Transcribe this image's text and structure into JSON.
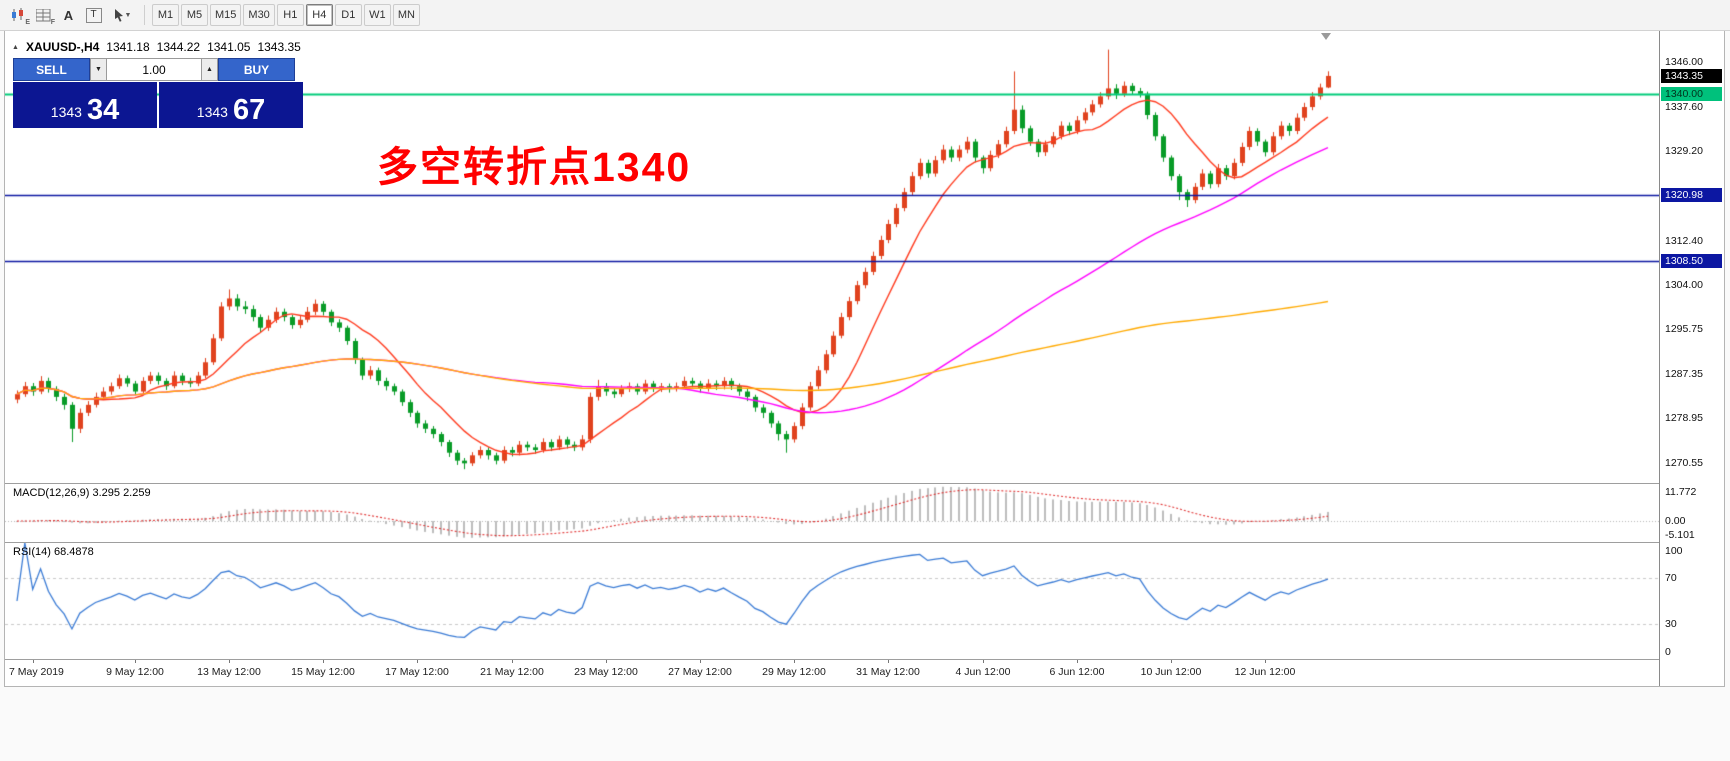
{
  "toolbar": {
    "tool_labels": {
      "a": "A",
      "t": "T",
      "e_sub": "E",
      "f_sub": "F"
    },
    "timeframes": [
      "M1",
      "M5",
      "M15",
      "M30",
      "H1",
      "H4",
      "D1",
      "W1",
      "MN"
    ],
    "active_timeframe": "H4"
  },
  "chart_header": {
    "symbol_period": "XAUUSD-,H4",
    "open": "1341.18",
    "high": "1344.22",
    "low": "1341.05",
    "close": "1343.35"
  },
  "trade_panel": {
    "sell_label": "SELL",
    "buy_label": "BUY",
    "volume": "1.00",
    "bid": {
      "main": "1343",
      "big": "34"
    },
    "ask": {
      "main": "1343",
      "big": "67"
    }
  },
  "annotation": {
    "text": "多空转折点1340",
    "color": "#ff0000"
  },
  "chart_data": {
    "type": "candlestick-ohlc",
    "symbol": "XAUUSD-",
    "timeframe": "H4",
    "price_range": [
      1266.8,
      1351.8
    ],
    "up_color": "#e0421e",
    "down_color": "#089b27",
    "current_price": 1343.35,
    "moving_averages": [
      {
        "name": "ma-fast",
        "period": 10,
        "color": "#ff3b1f"
      },
      {
        "name": "ma-medium",
        "period": 60,
        "color": "#ff00ff"
      },
      {
        "name": "ma-slow",
        "period": 200,
        "color": "#ffaa00"
      }
    ],
    "hlines": [
      {
        "price": 1340.0,
        "label": "1340.00",
        "color": "#00cc7a",
        "width": 2
      },
      {
        "price": 1320.98,
        "label": "1320.98",
        "color": "#0c17a2",
        "width": 1.6
      },
      {
        "price": 1308.5,
        "label": "1308.50",
        "color": "#0c17a2",
        "width": 1.6
      }
    ],
    "axis_labels": [
      {
        "text": "1346.00",
        "price": 1346.0,
        "style": "plain"
      },
      {
        "text": "1343.35",
        "price": 1343.35,
        "style": "current"
      },
      {
        "text": "1340.00",
        "price": 1340.0,
        "style": "green"
      },
      {
        "text": "1337.60",
        "price": 1337.6,
        "style": "plain"
      },
      {
        "text": "1329.20",
        "price": 1329.2,
        "style": "plain"
      },
      {
        "text": "1320.98",
        "price": 1320.98,
        "style": "blue"
      },
      {
        "text": "1312.40",
        "price": 1312.4,
        "style": "plain"
      },
      {
        "text": "1308.50",
        "price": 1308.5,
        "style": "blue"
      },
      {
        "text": "1304.00",
        "price": 1304.0,
        "style": "plain"
      },
      {
        "text": "1295.75",
        "price": 1295.75,
        "style": "plain"
      },
      {
        "text": "1287.35",
        "price": 1287.35,
        "style": "plain"
      },
      {
        "text": "1278.95",
        "price": 1278.95,
        "style": "plain"
      },
      {
        "text": "1270.55",
        "price": 1270.55,
        "style": "plain"
      }
    ],
    "time_labels": [
      {
        "text": "7 May 2019",
        "index": 2
      },
      {
        "text": "9 May 12:00",
        "index": 15
      },
      {
        "text": "13 May 12:00",
        "index": 27
      },
      {
        "text": "15 May 12:00",
        "index": 39
      },
      {
        "text": "17 May 12:00",
        "index": 51
      },
      {
        "text": "21 May 12:00",
        "index": 63
      },
      {
        "text": "23 May 12:00",
        "index": 75
      },
      {
        "text": "27 May 12:00",
        "index": 87
      },
      {
        "text": "29 May 12:00",
        "index": 99
      },
      {
        "text": "31 May 12:00",
        "index": 111
      },
      {
        "text": "4 Jun 12:00",
        "index": 123
      },
      {
        "text": "6 Jun 12:00",
        "index": 135
      },
      {
        "text": "10 Jun 12:00",
        "index": 147
      },
      {
        "text": "12 Jun 12:00",
        "index": 159
      }
    ],
    "macd": {
      "label": "MACD(12,26,9)",
      "values": "3.295 2.259",
      "params": [
        12,
        26,
        9
      ],
      "axis_labels": [
        "11.772",
        "0.00",
        "-5.101"
      ]
    },
    "rsi": {
      "label": "RSI(14)",
      "value": "68.4878",
      "period": 14,
      "levels": [
        70,
        30
      ],
      "axis_labels": [
        "100",
        "70",
        "30",
        "0"
      ],
      "color": "#3a7bd5"
    },
    "candles": [
      [
        1282.5,
        1284.2,
        1281.8,
        1283.5
      ],
      [
        1283.5,
        1285.8,
        1283.0,
        1285.0
      ],
      [
        1285.0,
        1285.6,
        1283.2,
        1284.0
      ],
      [
        1284.0,
        1286.9,
        1283.5,
        1286.0
      ],
      [
        1286.0,
        1286.6,
        1283.8,
        1284.5
      ],
      [
        1284.5,
        1285.0,
        1282.2,
        1283.0
      ],
      [
        1283.0,
        1283.6,
        1280.6,
        1281.5
      ],
      [
        1281.5,
        1282.0,
        1274.5,
        1277.0
      ],
      [
        1277.0,
        1280.8,
        1276.2,
        1280.0
      ],
      [
        1280.0,
        1282.2,
        1279.4,
        1281.5
      ],
      [
        1281.5,
        1283.8,
        1281.0,
        1283.0
      ],
      [
        1283.0,
        1284.8,
        1282.4,
        1284.0
      ],
      [
        1284.0,
        1285.7,
        1283.4,
        1285.0
      ],
      [
        1285.0,
        1287.2,
        1284.5,
        1286.5
      ],
      [
        1286.5,
        1287.0,
        1284.9,
        1285.5
      ],
      [
        1285.5,
        1286.0,
        1283.3,
        1284.0
      ],
      [
        1284.0,
        1286.7,
        1283.6,
        1286.0
      ],
      [
        1286.0,
        1287.7,
        1285.4,
        1287.0
      ],
      [
        1287.0,
        1287.6,
        1285.3,
        1286.0
      ],
      [
        1286.0,
        1286.5,
        1284.3,
        1285.0
      ],
      [
        1285.0,
        1287.8,
        1284.6,
        1287.0
      ],
      [
        1287.0,
        1287.5,
        1285.2,
        1286.0
      ],
      [
        1286.0,
        1286.6,
        1284.8,
        1285.5
      ],
      [
        1285.5,
        1287.7,
        1285.0,
        1287.0
      ],
      [
        1287.0,
        1290.3,
        1286.5,
        1289.5
      ],
      [
        1289.5,
        1294.8,
        1289.0,
        1294.0
      ],
      [
        1294.0,
        1300.8,
        1293.5,
        1300.0
      ],
      [
        1300.0,
        1303.2,
        1299.3,
        1301.5
      ],
      [
        1301.5,
        1302.3,
        1299.2,
        1300.0
      ],
      [
        1300.0,
        1301.0,
        1298.6,
        1299.5
      ],
      [
        1299.5,
        1300.2,
        1297.2,
        1298.0
      ],
      [
        1298.0,
        1298.5,
        1295.2,
        1296.0
      ],
      [
        1296.0,
        1298.3,
        1295.4,
        1297.5
      ],
      [
        1297.5,
        1299.8,
        1296.9,
        1299.0
      ],
      [
        1299.0,
        1299.6,
        1297.2,
        1298.0
      ],
      [
        1298.0,
        1298.4,
        1295.8,
        1296.5
      ],
      [
        1296.5,
        1298.2,
        1295.9,
        1297.5
      ],
      [
        1297.5,
        1299.9,
        1297.0,
        1299.0
      ],
      [
        1299.0,
        1301.3,
        1298.4,
        1300.5
      ],
      [
        1300.5,
        1301.0,
        1298.3,
        1299.0
      ],
      [
        1299.0,
        1299.4,
        1296.3,
        1297.0
      ],
      [
        1297.0,
        1297.6,
        1295.2,
        1296.0
      ],
      [
        1296.0,
        1296.4,
        1292.8,
        1293.5
      ],
      [
        1293.5,
        1294.0,
        1289.2,
        1290.0
      ],
      [
        1290.0,
        1290.4,
        1286.2,
        1287.0
      ],
      [
        1287.0,
        1288.8,
        1286.3,
        1288.0
      ],
      [
        1288.0,
        1288.5,
        1285.2,
        1286.0
      ],
      [
        1286.0,
        1286.6,
        1284.2,
        1285.0
      ],
      [
        1285.0,
        1285.5,
        1283.3,
        1284.0
      ],
      [
        1284.0,
        1284.4,
        1281.3,
        1282.0
      ],
      [
        1282.0,
        1282.5,
        1279.2,
        1280.0
      ],
      [
        1280.0,
        1280.4,
        1277.2,
        1278.0
      ],
      [
        1278.0,
        1278.6,
        1276.2,
        1277.0
      ],
      [
        1277.0,
        1277.5,
        1275.2,
        1276.0
      ],
      [
        1276.0,
        1276.4,
        1273.7,
        1274.5
      ],
      [
        1274.5,
        1274.9,
        1271.7,
        1272.5
      ],
      [
        1272.5,
        1273.0,
        1270.2,
        1271.0
      ],
      [
        1271.0,
        1271.5,
        1269.4,
        1270.5
      ],
      [
        1270.5,
        1272.6,
        1270.0,
        1272.0
      ],
      [
        1272.0,
        1273.7,
        1271.4,
        1273.0
      ],
      [
        1273.0,
        1273.5,
        1271.2,
        1272.0
      ],
      [
        1272.0,
        1272.5,
        1270.3,
        1271.0
      ],
      [
        1271.0,
        1273.7,
        1270.5,
        1273.0
      ],
      [
        1273.0,
        1273.6,
        1271.8,
        1272.5
      ],
      [
        1272.5,
        1274.7,
        1272.0,
        1274.0
      ],
      [
        1274.0,
        1274.6,
        1272.8,
        1273.5
      ],
      [
        1273.5,
        1274.1,
        1272.3,
        1273.0
      ],
      [
        1273.0,
        1275.2,
        1272.5,
        1274.5
      ],
      [
        1274.5,
        1275.0,
        1272.8,
        1273.5
      ],
      [
        1273.5,
        1275.7,
        1273.0,
        1275.0
      ],
      [
        1275.0,
        1275.5,
        1273.3,
        1274.0
      ],
      [
        1274.0,
        1274.6,
        1272.8,
        1273.5
      ],
      [
        1273.5,
        1275.8,
        1272.9,
        1275.0
      ],
      [
        1275.0,
        1283.8,
        1274.3,
        1283.0
      ],
      [
        1283.0,
        1286.2,
        1282.3,
        1285.0
      ],
      [
        1285.0,
        1285.6,
        1283.2,
        1284.0
      ],
      [
        1284.0,
        1284.6,
        1282.8,
        1283.5
      ],
      [
        1283.5,
        1285.2,
        1283.0,
        1284.5
      ],
      [
        1284.5,
        1285.7,
        1283.9,
        1285.0
      ],
      [
        1285.0,
        1285.5,
        1283.4,
        1284.0
      ],
      [
        1284.0,
        1286.2,
        1283.5,
        1285.5
      ],
      [
        1285.5,
        1286.0,
        1283.9,
        1284.5
      ],
      [
        1284.5,
        1285.6,
        1283.9,
        1285.0
      ],
      [
        1285.0,
        1285.5,
        1283.8,
        1284.5
      ],
      [
        1284.5,
        1285.7,
        1284.0,
        1285.0
      ],
      [
        1285.0,
        1286.8,
        1284.5,
        1286.0
      ],
      [
        1286.0,
        1286.6,
        1284.8,
        1285.5
      ],
      [
        1285.5,
        1286.0,
        1283.8,
        1284.5
      ],
      [
        1284.5,
        1286.3,
        1284.0,
        1285.5
      ],
      [
        1285.5,
        1286.1,
        1284.3,
        1285.0
      ],
      [
        1285.0,
        1286.7,
        1284.4,
        1286.0
      ],
      [
        1286.0,
        1286.5,
        1284.3,
        1285.0
      ],
      [
        1285.0,
        1285.5,
        1283.2,
        1284.0
      ],
      [
        1284.0,
        1284.5,
        1282.2,
        1283.0
      ],
      [
        1283.0,
        1283.4,
        1280.2,
        1281.0
      ],
      [
        1281.0,
        1281.6,
        1279.0,
        1280.0
      ],
      [
        1280.0,
        1280.4,
        1277.2,
        1278.0
      ],
      [
        1278.0,
        1278.5,
        1274.8,
        1276.0
      ],
      [
        1276.0,
        1276.6,
        1272.5,
        1275.0
      ],
      [
        1275.0,
        1278.2,
        1274.4,
        1277.5
      ],
      [
        1277.5,
        1281.8,
        1276.9,
        1281.0
      ],
      [
        1281.0,
        1285.8,
        1280.4,
        1285.0
      ],
      [
        1285.0,
        1288.8,
        1284.4,
        1288.0
      ],
      [
        1288.0,
        1291.8,
        1287.4,
        1291.0
      ],
      [
        1291.0,
        1295.3,
        1290.5,
        1294.5
      ],
      [
        1294.5,
        1298.8,
        1294.0,
        1298.0
      ],
      [
        1298.0,
        1301.8,
        1297.4,
        1301.0
      ],
      [
        1301.0,
        1304.8,
        1300.4,
        1304.0
      ],
      [
        1304.0,
        1307.3,
        1303.4,
        1306.5
      ],
      [
        1306.5,
        1310.3,
        1305.9,
        1309.5
      ],
      [
        1309.5,
        1313.3,
        1308.9,
        1312.5
      ],
      [
        1312.5,
        1316.3,
        1311.9,
        1315.5
      ],
      [
        1315.5,
        1319.3,
        1314.9,
        1318.5
      ],
      [
        1318.5,
        1322.3,
        1317.9,
        1321.5
      ],
      [
        1321.5,
        1325.3,
        1320.9,
        1324.5
      ],
      [
        1324.5,
        1327.8,
        1323.9,
        1327.0
      ],
      [
        1327.0,
        1327.6,
        1324.2,
        1325.0
      ],
      [
        1325.0,
        1328.3,
        1324.4,
        1327.5
      ],
      [
        1327.5,
        1330.4,
        1326.9,
        1329.5
      ],
      [
        1329.5,
        1330.1,
        1327.2,
        1328.0
      ],
      [
        1328.0,
        1330.3,
        1327.3,
        1329.5
      ],
      [
        1329.5,
        1331.9,
        1328.8,
        1331.0
      ],
      [
        1331.0,
        1331.5,
        1327.1,
        1328.0
      ],
      [
        1328.0,
        1328.4,
        1325.0,
        1326.0
      ],
      [
        1326.0,
        1329.3,
        1325.4,
        1328.5
      ],
      [
        1328.5,
        1331.3,
        1327.9,
        1330.5
      ],
      [
        1330.5,
        1333.8,
        1329.9,
        1333.0
      ],
      [
        1333.0,
        1344.2,
        1332.4,
        1337.0
      ],
      [
        1337.0,
        1337.8,
        1332.6,
        1333.5
      ],
      [
        1333.5,
        1334.0,
        1330.2,
        1331.0
      ],
      [
        1331.0,
        1331.5,
        1328.1,
        1329.0
      ],
      [
        1329.0,
        1331.2,
        1328.3,
        1330.5
      ],
      [
        1330.5,
        1332.8,
        1329.9,
        1332.0
      ],
      [
        1332.0,
        1334.8,
        1331.4,
        1334.0
      ],
      [
        1334.0,
        1334.6,
        1332.2,
        1333.0
      ],
      [
        1333.0,
        1335.8,
        1332.4,
        1335.0
      ],
      [
        1335.0,
        1337.3,
        1334.4,
        1336.5
      ],
      [
        1336.5,
        1338.8,
        1335.9,
        1338.0
      ],
      [
        1338.0,
        1340.3,
        1337.4,
        1339.5
      ],
      [
        1339.5,
        1348.3,
        1338.9,
        1341.0
      ],
      [
        1341.0,
        1341.8,
        1339.0,
        1340.0
      ],
      [
        1340.0,
        1342.3,
        1339.4,
        1341.5
      ],
      [
        1341.5,
        1342.0,
        1339.8,
        1340.5
      ],
      [
        1340.5,
        1341.1,
        1339.3,
        1340.0
      ],
      [
        1340.0,
        1340.4,
        1335.2,
        1336.0
      ],
      [
        1336.0,
        1336.5,
        1331.2,
        1332.0
      ],
      [
        1332.0,
        1332.4,
        1327.2,
        1328.0
      ],
      [
        1328.0,
        1328.4,
        1323.7,
        1324.5
      ],
      [
        1324.5,
        1324.9,
        1320.0,
        1321.5
      ],
      [
        1321.5,
        1322.0,
        1318.7,
        1320.0
      ],
      [
        1320.0,
        1323.2,
        1319.4,
        1322.5
      ],
      [
        1322.5,
        1325.8,
        1321.9,
        1325.0
      ],
      [
        1325.0,
        1325.5,
        1322.2,
        1323.0
      ],
      [
        1323.0,
        1326.8,
        1322.4,
        1326.0
      ],
      [
        1326.0,
        1326.6,
        1323.8,
        1324.5
      ],
      [
        1324.5,
        1327.8,
        1323.9,
        1327.0
      ],
      [
        1327.0,
        1330.8,
        1326.4,
        1330.0
      ],
      [
        1330.0,
        1333.8,
        1329.4,
        1333.0
      ],
      [
        1333.0,
        1333.5,
        1330.2,
        1331.0
      ],
      [
        1331.0,
        1331.4,
        1328.2,
        1329.0
      ],
      [
        1329.0,
        1332.8,
        1328.4,
        1332.0
      ],
      [
        1332.0,
        1334.8,
        1331.4,
        1334.0
      ],
      [
        1334.0,
        1334.5,
        1332.1,
        1333.0
      ],
      [
        1333.0,
        1336.3,
        1332.4,
        1335.5
      ],
      [
        1335.5,
        1338.3,
        1334.9,
        1337.5
      ],
      [
        1337.5,
        1340.3,
        1336.9,
        1339.5
      ],
      [
        1339.5,
        1341.9,
        1338.9,
        1341.18
      ],
      [
        1341.18,
        1344.22,
        1341.05,
        1343.35
      ]
    ]
  }
}
